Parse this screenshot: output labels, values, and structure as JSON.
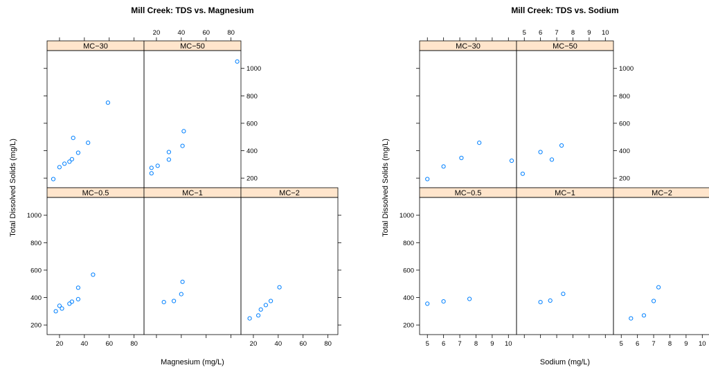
{
  "chart_data": [
    {
      "type": "scatter",
      "title": "Mill Creek: TDS vs. Magnesium",
      "xlabel": "Magnesium (mg/L)",
      "ylabel": "Total Dissolved Solids (mg/L)",
      "xlim": [
        10,
        88
      ],
      "ylim": [
        130,
        1130
      ],
      "x_ticks": [
        20,
        40,
        60,
        80
      ],
      "y_ticks": [
        200,
        400,
        600,
        800,
        1000
      ],
      "grid": false,
      "marker_color": "#0080ff",
      "panels": [
        {
          "name": "MC−30",
          "row": 0,
          "col": 0,
          "x": [
            15,
            20,
            24,
            28,
            30,
            31,
            35,
            43,
            59
          ],
          "y": [
            193,
            280,
            305,
            320,
            338,
            493,
            385,
            458,
            750
          ]
        },
        {
          "name": "MC−50",
          "row": 0,
          "col": 1,
          "x": [
            16,
            16,
            21,
            30,
            30,
            41,
            42,
            85
          ],
          "y": [
            235,
            275,
            290,
            335,
            390,
            435,
            542,
            1050
          ]
        },
        {
          "name": "MC−0.5",
          "row": 1,
          "col": 0,
          "x": [
            17,
            20,
            22,
            28,
            30,
            35,
            35,
            47
          ],
          "y": [
            300,
            340,
            320,
            355,
            370,
            388,
            472,
            567
          ]
        },
        {
          "name": "MC−1",
          "row": 1,
          "col": 1,
          "x": [
            26,
            34,
            40,
            41
          ],
          "y": [
            367,
            375,
            425,
            515
          ]
        },
        {
          "name": "MC−2",
          "row": 1,
          "col": 2,
          "x": [
            17,
            24,
            26,
            30,
            34,
            41
          ],
          "y": [
            248,
            270,
            313,
            345,
            375,
            475
          ]
        }
      ]
    },
    {
      "type": "scatter",
      "title": "Mill Creek: TDS vs. Sodium",
      "xlabel": "Sodium (mg/L)",
      "ylabel": "Total Dissolved Solids (mg/L)",
      "xlim": [
        4.52,
        10.5
      ],
      "ylim": [
        130,
        1130
      ],
      "x_ticks": [
        5,
        6,
        7,
        8,
        9,
        10
      ],
      "y_ticks": [
        200,
        400,
        600,
        800,
        1000
      ],
      "grid": false,
      "marker_color": "#0080ff",
      "panels": [
        {
          "name": "MC−30",
          "row": 0,
          "col": 0,
          "x": [
            5.0,
            6.0,
            7.1,
            8.2,
            10.2
          ],
          "y": [
            193,
            285,
            347,
            458,
            327
          ]
        },
        {
          "name": "MC−50",
          "row": 0,
          "col": 1,
          "x": [
            4.9,
            6.0,
            6.7,
            7.3
          ],
          "y": [
            232,
            390,
            335,
            438
          ]
        },
        {
          "name": "MC−0.5",
          "row": 1,
          "col": 0,
          "x": [
            5.0,
            6.0,
            7.6
          ],
          "y": [
            355,
            372,
            390
          ]
        },
        {
          "name": "MC−1",
          "row": 1,
          "col": 1,
          "x": [
            6.0,
            6.6,
            7.4
          ],
          "y": [
            367,
            378,
            427
          ]
        },
        {
          "name": "MC−2",
          "row": 1,
          "col": 2,
          "x": [
            5.6,
            6.4,
            7.0,
            7.3
          ],
          "y": [
            248,
            270,
            375,
            475
          ]
        }
      ]
    }
  ]
}
